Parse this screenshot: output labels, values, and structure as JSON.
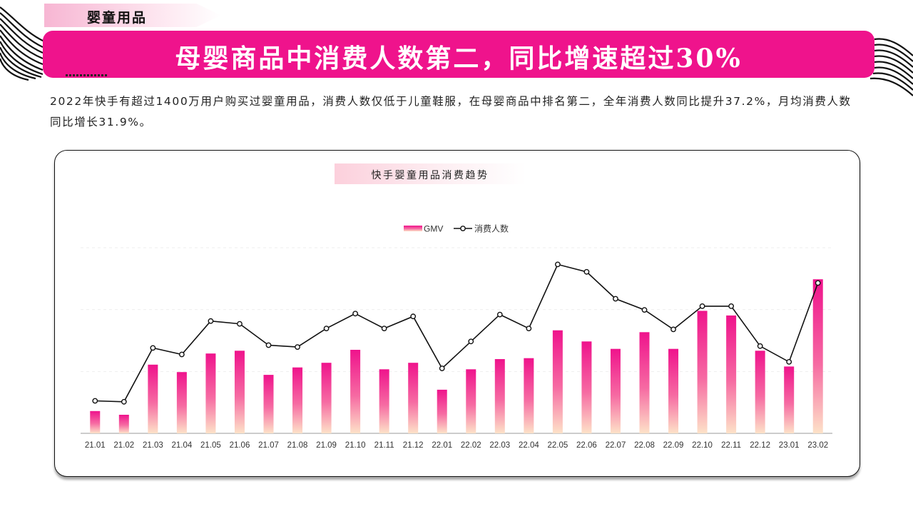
{
  "section_label": "婴童用品",
  "headline": "母婴商品中消费人数第二，同比增速超过30%",
  "description": "2022年快手有超过1400万用户购买过婴童用品，消费人数仅低于儿童鞋服，在母婴商品中排名第二，全年消费人数同比提升37.2%，月均消费人数同比增长31.9%。",
  "colors": {
    "accent": "#ef138c",
    "bar_top": "#ef138c",
    "bar_bottom": "#fde2c8",
    "line": "#111111"
  },
  "chart_data": {
    "type": "bar+line",
    "title": "快手婴童用品消费趋势",
    "legend_position": "top-center",
    "grid": true,
    "categories": [
      "21.01",
      "21.02",
      "21.03",
      "21.04",
      "21.05",
      "21.06",
      "21.07",
      "21.08",
      "21.09",
      "21.10",
      "21.11",
      "21.12",
      "22.01",
      "22.02",
      "22.03",
      "22.04",
      "22.05",
      "22.06",
      "22.07",
      "22.08",
      "22.09",
      "22.10",
      "22.11",
      "22.12",
      "23.01",
      "23.02"
    ],
    "ylim": [
      0,
      100
    ],
    "series": [
      {
        "name": "GMV",
        "type": "bar",
        "values": [
          12,
          10,
          37,
          33,
          43,
          44.5,
          31.5,
          35.5,
          38,
          45,
          34.5,
          38,
          23.5,
          34.5,
          40,
          40.5,
          55.5,
          49.5,
          45.5,
          54.5,
          45.5,
          66,
          63.5,
          44.5,
          36,
          83
        ]
      },
      {
        "name": "消费人数",
        "type": "line",
        "values": [
          17.5,
          17,
          46,
          42.5,
          60.5,
          59,
          47.5,
          46.5,
          56.5,
          64.5,
          56.5,
          63,
          35,
          49.5,
          64,
          56.5,
          91,
          87,
          72.5,
          66.5,
          56,
          68.5,
          68.5,
          47,
          38.5,
          81
        ]
      }
    ]
  }
}
